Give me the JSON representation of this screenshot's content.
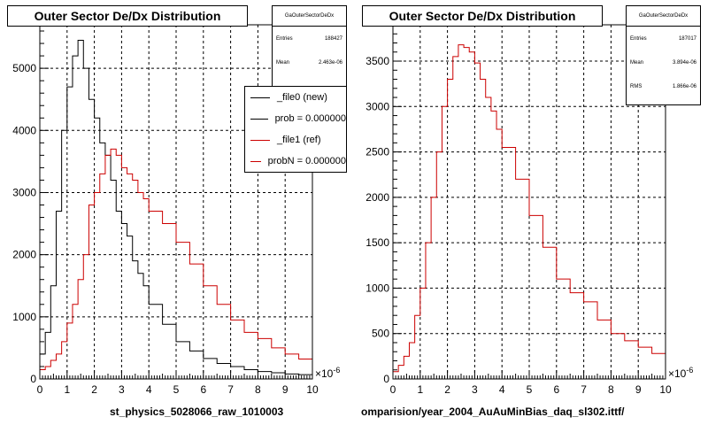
{
  "chart_data": [
    {
      "type": "histogram",
      "title": "Outer Sector De/Dx Distribution",
      "xlabel": "st_physics_5028066_raw_1010003",
      "x_exponent_label": "×10",
      "x_exponent": "-6",
      "xlim": [
        0,
        10
      ],
      "ylim": [
        0,
        5700
      ],
      "x_ticks": [
        "0",
        "1",
        "2",
        "3",
        "4",
        "5",
        "6",
        "7",
        "8",
        "9",
        "10"
      ],
      "y_ticks": [
        {
          "v": 0,
          "label": "0"
        },
        {
          "v": 1000,
          "label": "1000"
        },
        {
          "v": 2000,
          "label": "2000"
        },
        {
          "v": 3000,
          "label": "3000"
        },
        {
          "v": 4000,
          "label": "4000"
        },
        {
          "v": 5000,
          "label": "5000"
        }
      ],
      "grid": true,
      "stats": {
        "name": "GaOuterSectorDeDx",
        "rows": [
          {
            "label": "Entries",
            "value": "188427"
          },
          {
            "label": "Mean",
            "value": "2.463e-06"
          }
        ]
      },
      "legend": [
        {
          "label": "_file0 (new)",
          "color": "#000000"
        },
        {
          "label": "prob = 0.000000",
          "color": "#000000"
        },
        {
          "label": "_file1 (ref)",
          "color": "#cc0000"
        },
        {
          "label": "probN = 0.000000",
          "color": "#cc0000"
        }
      ],
      "series": [
        {
          "name": "_file0 (new)",
          "color": "#000000",
          "x": [
            0,
            0.2,
            0.4,
            0.6,
            0.8,
            1.0,
            1.2,
            1.4,
            1.6,
            1.8,
            2.0,
            2.2,
            2.4,
            2.6,
            2.8,
            3.0,
            3.2,
            3.4,
            3.6,
            3.8,
            4.0,
            4.5,
            5.0,
            5.5,
            6.0,
            6.5,
            7.0,
            7.5,
            8.0,
            8.5,
            9.0,
            9.5,
            10.0
          ],
          "y": [
            400,
            750,
            1500,
            2700,
            4000,
            4700,
            5200,
            5450,
            5000,
            4500,
            4200,
            3800,
            3600,
            3200,
            2700,
            2500,
            2300,
            1900,
            1700,
            1500,
            1200,
            880,
            600,
            450,
            330,
            250,
            200,
            150,
            120,
            100,
            80,
            70,
            60
          ]
        },
        {
          "name": "_file1 (ref)",
          "color": "#cc0000",
          "x": [
            0,
            0.2,
            0.4,
            0.6,
            0.8,
            1.0,
            1.2,
            1.4,
            1.6,
            1.8,
            2.0,
            2.2,
            2.4,
            2.6,
            2.8,
            3.0,
            3.2,
            3.4,
            3.6,
            3.8,
            4.0,
            4.5,
            5.0,
            5.5,
            6.0,
            6.5,
            7.0,
            7.5,
            8.0,
            8.5,
            9.0,
            9.5,
            10.0
          ],
          "y": [
            150,
            200,
            300,
            400,
            600,
            900,
            1200,
            1600,
            2000,
            2800,
            3000,
            3300,
            3600,
            3700,
            3600,
            3400,
            3300,
            3200,
            3000,
            2900,
            2700,
            2500,
            2200,
            1850,
            1500,
            1200,
            950,
            750,
            650,
            500,
            400,
            320,
            260
          ]
        }
      ]
    },
    {
      "type": "histogram",
      "title": "Outer Sector De/Dx Distribution",
      "xlabel": "omparision/year_2004_AuAuMinBias_daq_sl302.ittf/",
      "x_exponent_label": "×10",
      "x_exponent": "-6",
      "xlim": [
        0,
        10
      ],
      "ylim": [
        0,
        3900
      ],
      "x_ticks": [
        "0",
        "1",
        "2",
        "3",
        "4",
        "5",
        "6",
        "7",
        "8",
        "9",
        "10"
      ],
      "y_ticks": [
        {
          "v": 0,
          "label": "0"
        },
        {
          "v": 500,
          "label": "500"
        },
        {
          "v": 1000,
          "label": "1000"
        },
        {
          "v": 1500,
          "label": "1500"
        },
        {
          "v": 2000,
          "label": "2000"
        },
        {
          "v": 2500,
          "label": "2500"
        },
        {
          "v": 3000,
          "label": "3000"
        },
        {
          "v": 3500,
          "label": "3500"
        }
      ],
      "grid": true,
      "stats": {
        "name": "GaOuterSectorDeDx",
        "rows": [
          {
            "label": "Entries",
            "value": "187017"
          },
          {
            "label": "Mean",
            "value": "3.894e-06"
          },
          {
            "label": "RMS",
            "value": "1.866e-06"
          }
        ]
      },
      "series": [
        {
          "name": "",
          "color": "#cc0000",
          "x": [
            0,
            0.2,
            0.4,
            0.6,
            0.8,
            1.0,
            1.2,
            1.4,
            1.6,
            1.8,
            2.0,
            2.2,
            2.4,
            2.6,
            2.8,
            3.0,
            3.2,
            3.4,
            3.6,
            3.8,
            4.0,
            4.5,
            5.0,
            5.5,
            6.0,
            6.5,
            7.0,
            7.5,
            8.0,
            8.5,
            9.0,
            9.5,
            10.0
          ],
          "y": [
            80,
            150,
            250,
            400,
            700,
            1000,
            1500,
            2000,
            2500,
            3000,
            3300,
            3550,
            3680,
            3650,
            3600,
            3480,
            3300,
            3100,
            2950,
            2750,
            2550,
            2200,
            1800,
            1450,
            1100,
            950,
            850,
            650,
            500,
            420,
            350,
            280,
            260
          ]
        }
      ]
    }
  ]
}
